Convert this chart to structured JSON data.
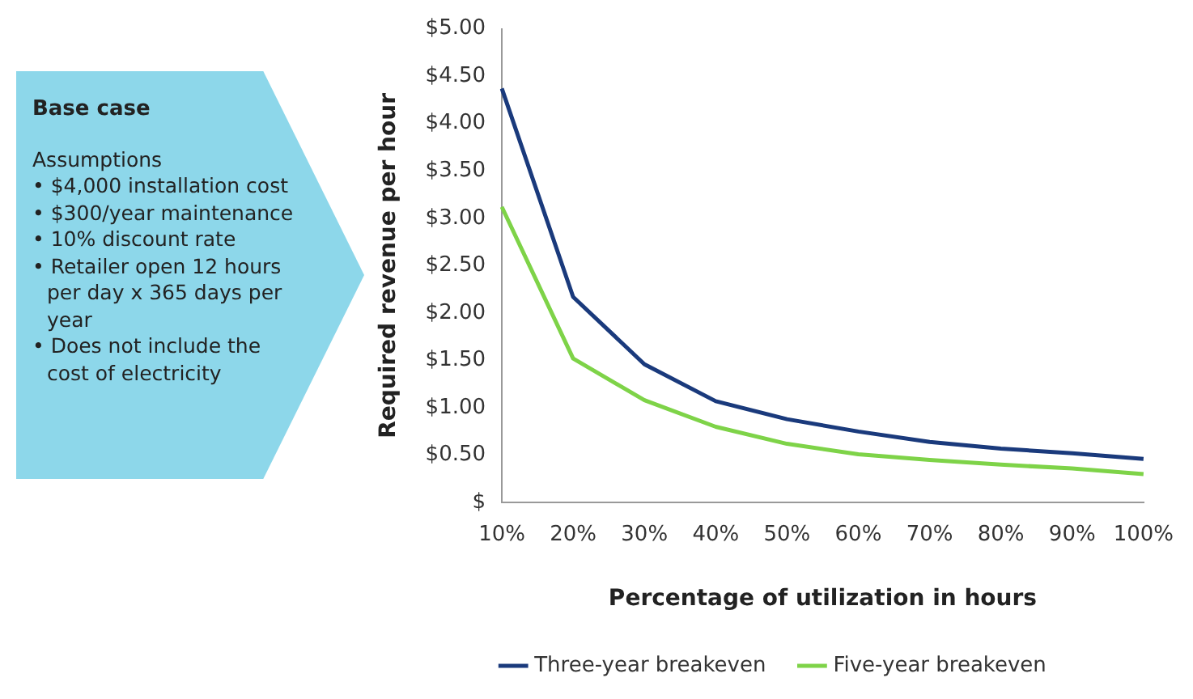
{
  "chart_data": {
    "type": "line",
    "title": "Base case",
    "subtitle": "Assumptions",
    "annotations": [
      "• $4,000 installation cost",
      "• $300/year maintenance",
      "• 10% discount rate",
      "• Retailer open 12 hours per day x 365 days per year",
      "• Does not include the cost of electricity"
    ],
    "xlabel": "Percentage of utilization in hours",
    "ylabel": "Required revenue per hour",
    "categories": [
      "10%",
      "20%",
      "30%",
      "40%",
      "50%",
      "60%",
      "70%",
      "80%",
      "90%",
      "100%"
    ],
    "series": [
      {
        "name": "Three-year breakeven",
        "color": "#1a3a7c",
        "values": [
          4.37,
          2.17,
          1.46,
          1.07,
          0.88,
          0.75,
          0.64,
          0.57,
          0.52,
          0.46
        ]
      },
      {
        "name": "Five-year breakeven",
        "color": "#7ed348",
        "values": [
          3.12,
          1.52,
          1.08,
          0.8,
          0.62,
          0.51,
          0.45,
          0.4,
          0.36,
          0.3
        ]
      }
    ],
    "ylim": [
      0,
      5
    ],
    "yticks": [
      {
        "value": 0,
        "label": "$"
      },
      {
        "value": 0.5,
        "label": "$0.50"
      },
      {
        "value": 1,
        "label": "$1.00"
      },
      {
        "value": 1.5,
        "label": "$1.50"
      },
      {
        "value": 2,
        "label": "$2.00"
      },
      {
        "value": 2.5,
        "label": "$2.50"
      },
      {
        "value": 3,
        "label": "$3.00"
      },
      {
        "value": 3.5,
        "label": "$3.50"
      },
      {
        "value": 4,
        "label": "$4.00"
      },
      {
        "value": 4.5,
        "label": "$4.50"
      },
      {
        "value": 5,
        "label": "$5.00"
      }
    ],
    "grid": false,
    "legend": "bottom",
    "marker": "none",
    "line_style": "solid"
  }
}
